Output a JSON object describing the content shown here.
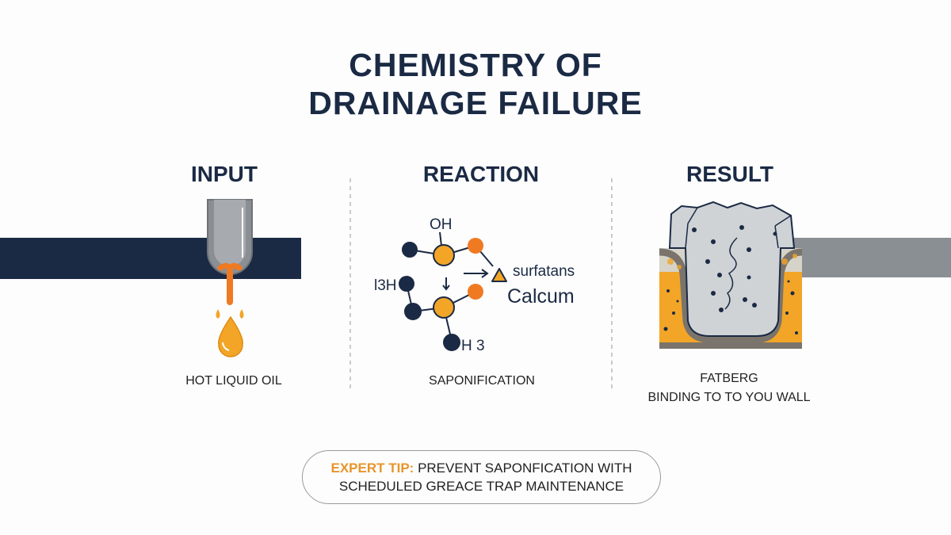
{
  "title": {
    "line1": "CHEMISTRY OF",
    "line2": "DRAINAGE FAILURE"
  },
  "colors": {
    "navy": "#1b2a44",
    "orange": "#f2a527",
    "orange_red": "#f07a22",
    "gray": "#8a8f94"
  },
  "panels": [
    {
      "heading": "INPUT",
      "caption": "HOT LIQUID OIL",
      "icon": "oil-pipe-drip-icon"
    },
    {
      "heading": "REACTION",
      "caption": "SAPONIFICATION",
      "icon": "molecule-diagram",
      "molecule": {
        "top_label": "OH",
        "left_label": "l3H",
        "bottom_label": "H 3",
        "product1": "surfatans",
        "product2": "Calcum"
      }
    },
    {
      "heading": "RESULT",
      "caption_line1": "FATBERG",
      "caption_line2": "BINDING TO TO YOU WALL",
      "icon": "fatberg-cross-section-icon"
    }
  ],
  "tip": {
    "key": "EXPERT TIP:",
    "text_line1": " PREVENT SAPONFICATION WITH",
    "text_line2": "SCHEDULED GREACE TRAP MAINTENANCE"
  }
}
